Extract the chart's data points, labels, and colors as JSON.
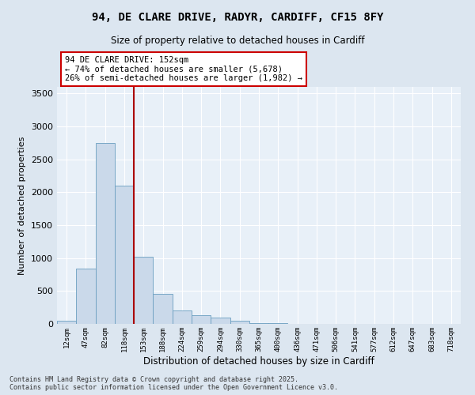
{
  "title_line1": "94, DE CLARE DRIVE, RADYR, CARDIFF, CF15 8FY",
  "title_line2": "Size of property relative to detached houses in Cardiff",
  "xlabel": "Distribution of detached houses by size in Cardiff",
  "ylabel": "Number of detached properties",
  "categories": [
    "12sqm",
    "47sqm",
    "82sqm",
    "118sqm",
    "153sqm",
    "188sqm",
    "224sqm",
    "259sqm",
    "294sqm",
    "330sqm",
    "365sqm",
    "400sqm",
    "436sqm",
    "471sqm",
    "506sqm",
    "541sqm",
    "577sqm",
    "612sqm",
    "647sqm",
    "683sqm",
    "718sqm"
  ],
  "values": [
    50,
    840,
    2750,
    2100,
    1025,
    460,
    210,
    135,
    100,
    50,
    15,
    8,
    4,
    2,
    1,
    0,
    0,
    0,
    0,
    0,
    0
  ],
  "bar_color": "#cad9ea",
  "bar_edge_color": "#6a9ec0",
  "vline_bin": 3,
  "vline_color": "#aa0000",
  "annotation_title": "94 DE CLARE DRIVE: 152sqm",
  "annotation_line2": "← 74% of detached houses are smaller (5,678)",
  "annotation_line3": "26% of semi-detached houses are larger (1,982) →",
  "annotation_box_edgecolor": "#cc0000",
  "ylim": [
    0,
    3600
  ],
  "yticks": [
    0,
    500,
    1000,
    1500,
    2000,
    2500,
    3000,
    3500
  ],
  "background_color": "#dce6f0",
  "plot_bg_color": "#e8f0f8",
  "grid_color": "#ffffff",
  "footer_line1": "Contains HM Land Registry data © Crown copyright and database right 2025.",
  "footer_line2": "Contains public sector information licensed under the Open Government Licence v3.0."
}
